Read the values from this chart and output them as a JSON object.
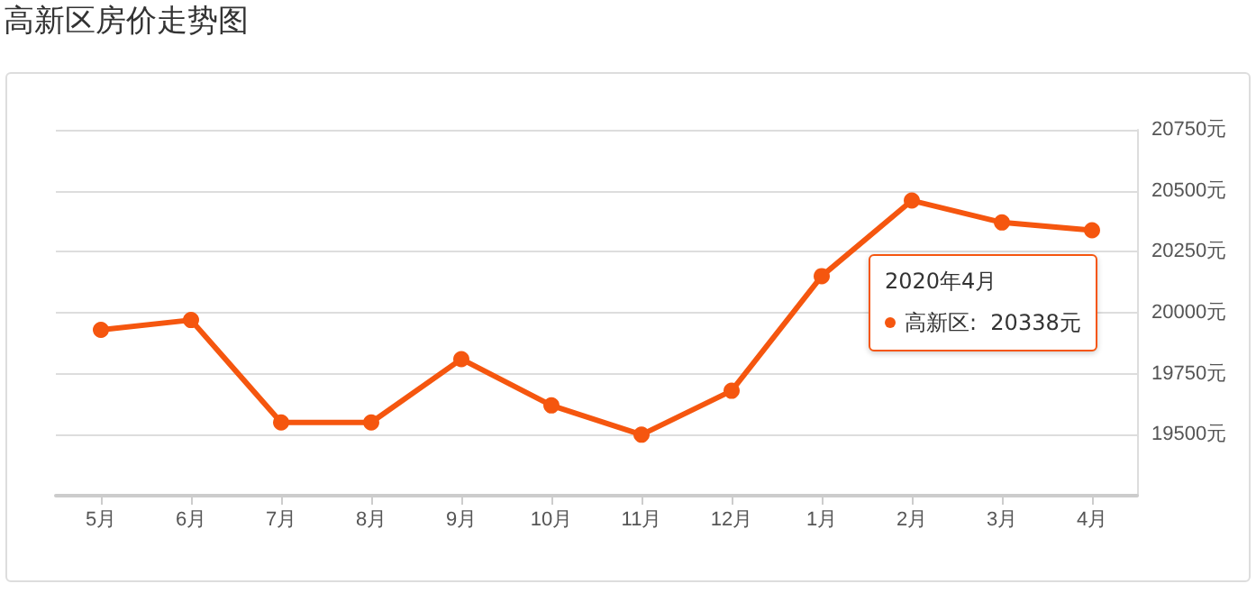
{
  "chart_data": {
    "type": "line",
    "title": "高新区房价走势图",
    "categories": [
      "5月",
      "6月",
      "7月",
      "8月",
      "9月",
      "10月",
      "11月",
      "12月",
      "1月",
      "2月",
      "3月",
      "4月"
    ],
    "series": [
      {
        "color": "#f5560f",
        "values": [
          19930,
          19970,
          19550,
          19550,
          19810,
          19620,
          19500,
          19680,
          20150,
          20460,
          20370,
          20338
        ]
      }
    ],
    "ylim": [
      19250,
      20750
    ],
    "yticks": [
      {
        "value": 19250,
        "label": null
      },
      {
        "value": 19500,
        "label": "19500元"
      },
      {
        "value": 19750,
        "label": "19750元"
      },
      {
        "value": 20000,
        "label": "20000元"
      },
      {
        "value": 20250,
        "label": "20250元"
      },
      {
        "value": 20500,
        "label": "20500元"
      },
      {
        "value": 20750,
        "label": "20750元"
      }
    ],
    "annotations": [
      "2020年4月",
      "高新区:  20338元"
    ],
    "grid": "y",
    "marker": "circle",
    "line_style": "solid"
  }
}
